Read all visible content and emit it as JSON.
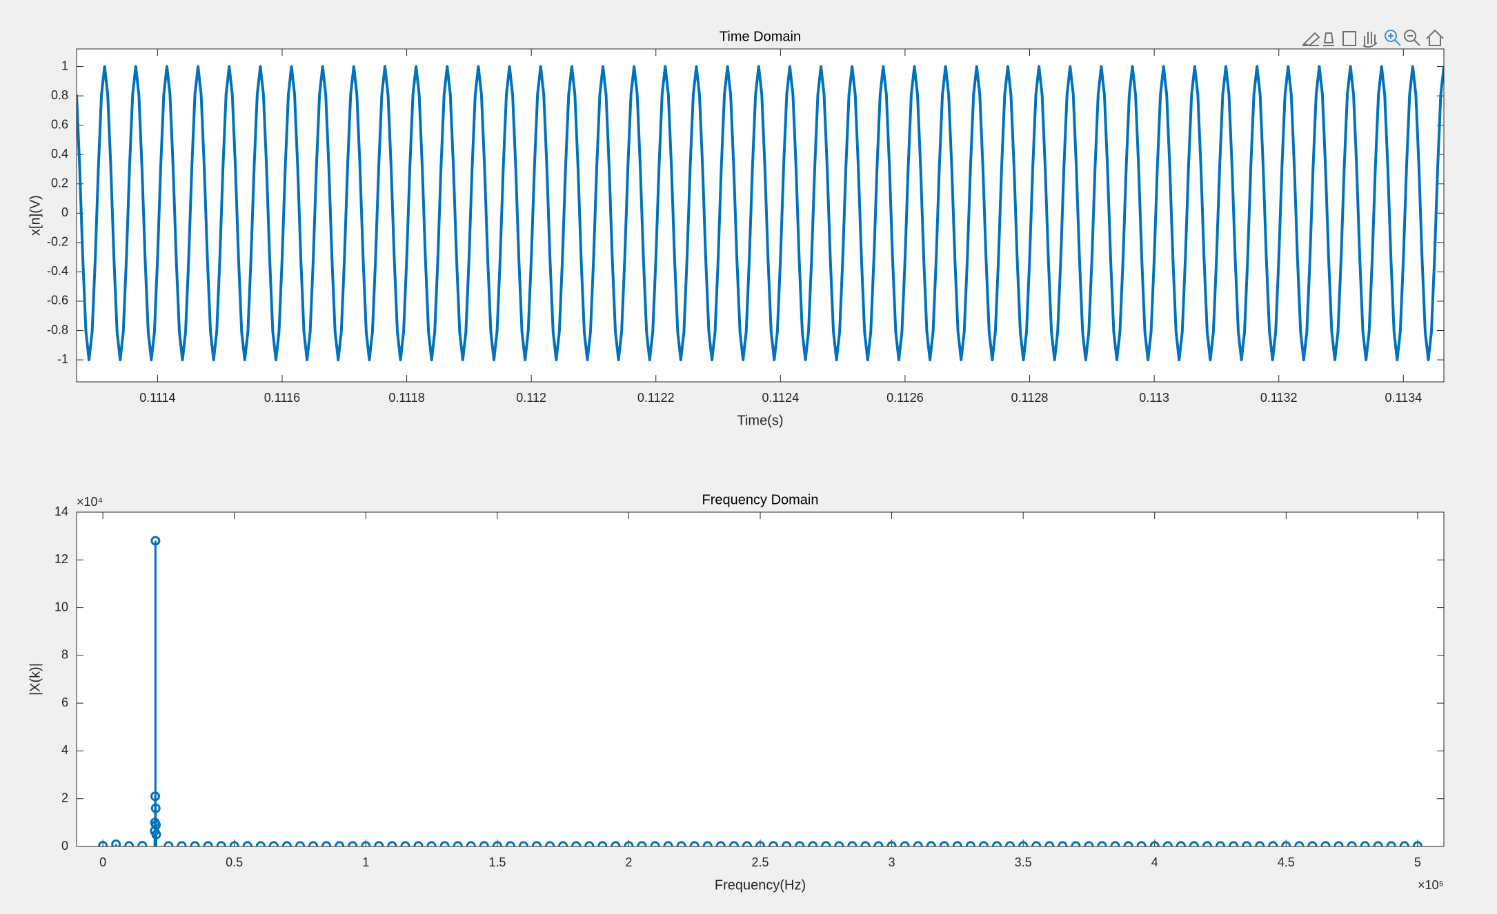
{
  "chart_data": [
    {
      "type": "line",
      "title": "Time Domain",
      "x_label": "Time(s)",
      "y_label": "x[n](V)",
      "color": "#0072bd",
      "xlim": [
        0.11127,
        0.113465
      ],
      "xticks": [
        0.1114,
        0.1116,
        0.1118,
        0.112,
        0.1122,
        0.1124,
        0.1126,
        0.1128,
        0.113,
        0.1132,
        0.1134
      ],
      "ylim": [
        -1.15,
        1.12
      ],
      "yticks": [
        -1,
        -0.8,
        -0.6,
        -0.4,
        -0.2,
        0,
        0.2,
        0.4,
        0.6,
        0.8,
        1
      ],
      "x": [
        0.11127,
        0.111275,
        0.11128,
        0.111285,
        0.11129,
        0.111295,
        0.1113,
        0.111305,
        0.11131,
        0.111315,
        0.11132,
        0.111325,
        0.11133,
        0.111335,
        0.11134,
        0.111345,
        0.11135,
        0.111355,
        0.11136,
        0.111365,
        0.11137,
        0.111375,
        0.11138,
        0.111385,
        0.11139,
        0.111395,
        0.1114,
        0.111405,
        0.11141,
        0.111415,
        0.11142,
        0.111425,
        0.11143,
        0.111435,
        0.11144,
        0.111445,
        0.11145,
        0.111455,
        0.11146,
        0.111465,
        0.11147,
        0.111475,
        0.11148,
        0.111485,
        0.11149,
        0.111495,
        0.1115,
        0.111505,
        0.11151,
        0.111515,
        0.11152,
        0.111525,
        0.11153,
        0.111535,
        0.11154,
        0.111545,
        0.11155,
        0.111555,
        0.11156,
        0.111565,
        0.11157,
        0.111575,
        0.11158,
        0.111585,
        0.11159,
        0.111595,
        0.1116,
        0.111605,
        0.11161,
        0.111615,
        0.11162,
        0.111625,
        0.11163,
        0.111635,
        0.11164,
        0.111645,
        0.11165,
        0.111655,
        0.11166,
        0.111665,
        0.11167,
        0.111675,
        0.11168,
        0.111685,
        0.11169,
        0.111695,
        0.1117,
        0.111705,
        0.11171,
        0.111715,
        0.11172,
        0.111725,
        0.11173,
        0.111735,
        0.11174,
        0.111745,
        0.11175,
        0.111755,
        0.11176,
        0.111765,
        0.11177,
        0.111775,
        0.11178,
        0.111785,
        0.11179,
        0.111795,
        0.1118,
        0.111805,
        0.11181,
        0.111815,
        0.11182,
        0.111825,
        0.11183,
        0.111835,
        0.11184,
        0.111845,
        0.11185,
        0.111855,
        0.11186,
        0.111865,
        0.11187,
        0.111875,
        0.11188,
        0.111885,
        0.11189,
        0.111895,
        0.1119,
        0.111905,
        0.11191,
        0.111915,
        0.11192,
        0.111925,
        0.11193,
        0.111935,
        0.11194,
        0.111945,
        0.11195,
        0.111955,
        0.11196,
        0.111965,
        0.11197,
        0.111975,
        0.11198,
        0.111985,
        0.11199,
        0.111995,
        0.112,
        0.112005,
        0.11201,
        0.112015,
        0.11202,
        0.112025,
        0.11203,
        0.112035,
        0.11204,
        0.112045,
        0.11205,
        0.112055,
        0.11206,
        0.112065,
        0.11207,
        0.112075,
        0.11208,
        0.112085,
        0.11209,
        0.112095,
        0.1121,
        0.112105,
        0.11211,
        0.112115,
        0.11212,
        0.112125,
        0.11213,
        0.112135,
        0.11214,
        0.112145,
        0.11215,
        0.112155,
        0.11216,
        0.112165,
        0.11217,
        0.112175,
        0.11218,
        0.112185,
        0.11219,
        0.112195,
        0.1122,
        0.112205,
        0.11221,
        0.112215,
        0.11222,
        0.112225,
        0.11223,
        0.112235,
        0.11224,
        0.112245,
        0.11225,
        0.112255,
        0.11226,
        0.112265,
        0.11227,
        0.112275,
        0.11228,
        0.112285,
        0.11229,
        0.112295,
        0.1123,
        0.112305,
        0.11231,
        0.112315,
        0.11232,
        0.112325,
        0.11233,
        0.112335,
        0.11234,
        0.112345,
        0.11235,
        0.112355,
        0.11236,
        0.112365,
        0.11237,
        0.112375,
        0.11238,
        0.112385,
        0.11239,
        0.112395,
        0.1124,
        0.112405,
        0.11241,
        0.112415,
        0.11242,
        0.112425,
        0.11243,
        0.112435,
        0.11244,
        0.112445,
        0.11245,
        0.112455,
        0.11246,
        0.112465,
        0.11247,
        0.112475,
        0.11248,
        0.112485,
        0.11249,
        0.112495,
        0.1125,
        0.112505,
        0.11251,
        0.112515,
        0.11252,
        0.112525,
        0.11253,
        0.112535,
        0.11254,
        0.112545,
        0.11255,
        0.112555,
        0.11256,
        0.112565,
        0.11257,
        0.112575,
        0.11258,
        0.112585,
        0.11259,
        0.112595,
        0.1126,
        0.112605,
        0.11261,
        0.112615,
        0.11262,
        0.112625,
        0.11263,
        0.112635,
        0.11264,
        0.112645,
        0.11265,
        0.112655,
        0.11266,
        0.112665,
        0.11267,
        0.112675,
        0.11268,
        0.112685,
        0.11269,
        0.112695,
        0.1127,
        0.112705,
        0.11271,
        0.112715,
        0.11272,
        0.112725,
        0.11273,
        0.112735,
        0.11274,
        0.112745,
        0.11275,
        0.112755,
        0.11276,
        0.112765,
        0.11277,
        0.112775,
        0.11278,
        0.112785,
        0.11279,
        0.112795,
        0.1128,
        0.112805,
        0.11281,
        0.112815,
        0.11282,
        0.112825,
        0.11283,
        0.112835,
        0.11284,
        0.112845,
        0.11285,
        0.112855,
        0.11286,
        0.112865,
        0.11287,
        0.112875,
        0.11288,
        0.112885,
        0.11289,
        0.112895,
        0.1129,
        0.112905,
        0.11291,
        0.112915,
        0.11292,
        0.112925,
        0.11293,
        0.112935,
        0.11294,
        0.112945,
        0.11295,
        0.112955,
        0.11296,
        0.112965,
        0.11297,
        0.112975,
        0.11298,
        0.112985,
        0.11299,
        0.112995,
        0.113,
        0.113005,
        0.11301,
        0.113015,
        0.11302,
        0.113025,
        0.11303,
        0.113035,
        0.11304,
        0.113045,
        0.11305,
        0.113055,
        0.11306,
        0.113065,
        0.11307,
        0.113075,
        0.11308,
        0.113085,
        0.11309,
        0.113095,
        0.1131,
        0.113105,
        0.11311,
        0.113115,
        0.11312,
        0.113125,
        0.11313,
        0.113135,
        0.11314,
        0.113145,
        0.11315,
        0.113155,
        0.11316,
        0.113165,
        0.11317,
        0.113175,
        0.11318,
        0.113185,
        0.11319,
        0.113195,
        0.1132,
        0.113205,
        0.11321,
        0.113215,
        0.11322,
        0.113225,
        0.11323,
        0.113235,
        0.11324,
        0.113245,
        0.11325,
        0.113255,
        0.11326,
        0.113265,
        0.11327,
        0.113275,
        0.11328,
        0.113285,
        0.11329,
        0.113295,
        0.1133,
        0.113305,
        0.11331,
        0.113315,
        0.11332,
        0.113325,
        0.11333,
        0.113335,
        0.11334,
        0.113345,
        0.11335,
        0.113355,
        0.11336,
        0.113365,
        0.11337,
        0.113375,
        0.11338,
        0.113385,
        0.11339,
        0.113395,
        0.1134,
        0.113405,
        0.11341,
        0.113415,
        0.11342,
        0.113425,
        0.11343,
        0.113435,
        0.11344,
        0.113445,
        0.11345,
        0.113455,
        0.11346,
        0.113465
      ],
      "values": [
        0.809,
        0.309,
        -0.309,
        -0.809,
        -1,
        -0.809,
        -0.309,
        0.309,
        0.809,
        1,
        0.809,
        0.309,
        -0.309,
        -0.809,
        -1,
        -0.809,
        -0.309,
        0.309,
        0.809,
        1,
        0.809,
        0.309,
        -0.309,
        -0.809,
        -1,
        -0.809,
        -0.309,
        0.309,
        0.809,
        1,
        0.809,
        0.309,
        -0.309,
        -0.809,
        -1,
        -0.809,
        -0.309,
        0.309,
        0.809,
        1,
        0.809,
        0.309,
        -0.309,
        -0.809,
        -1,
        -0.809,
        -0.309,
        0.309,
        0.809,
        1,
        0.809,
        0.309,
        -0.309,
        -0.809,
        -1,
        -0.809,
        -0.309,
        0.309,
        0.809,
        1,
        0.809,
        0.309,
        -0.309,
        -0.809,
        -1,
        -0.809,
        -0.309,
        0.309,
        0.809,
        1,
        0.809,
        0.309,
        -0.309,
        -0.809,
        -1,
        -0.809,
        -0.309,
        0.309,
        0.809,
        1,
        0.809,
        0.309,
        -0.309,
        -0.809,
        -1,
        -0.809,
        -0.309,
        0.309,
        0.809,
        1,
        0.809,
        0.309,
        -0.309,
        -0.809,
        -1,
        -0.809,
        -0.309,
        0.309,
        0.809,
        1,
        0.809,
        0.309,
        -0.309,
        -0.809,
        -1,
        -0.809,
        -0.309,
        0.309,
        0.809,
        1,
        0.809,
        0.309,
        -0.309,
        -0.809,
        -1,
        -0.809,
        -0.309,
        0.309,
        0.809,
        1,
        0.809,
        0.309,
        -0.309,
        -0.809,
        -1,
        -0.809,
        -0.309,
        0.309,
        0.809,
        1,
        0.809,
        0.309,
        -0.309,
        -0.809,
        -1,
        -0.809,
        -0.309,
        0.309,
        0.809,
        1,
        0.809,
        0.309,
        -0.309,
        -0.809,
        -1,
        -0.809,
        -0.309,
        0.309,
        0.809,
        1,
        0.809,
        0.309,
        -0.309,
        -0.809,
        -1,
        -0.809,
        -0.309,
        0.309,
        0.809,
        1,
        0.809,
        0.309,
        -0.309,
        -0.809,
        -1,
        -0.809,
        -0.309,
        0.309,
        0.809,
        1,
        0.809,
        0.309,
        -0.309,
        -0.809,
        -1,
        -0.809,
        -0.309,
        0.309,
        0.809,
        1,
        0.809,
        0.309,
        -0.309,
        -0.809,
        -1,
        -0.809,
        -0.309,
        0.309,
        0.809,
        1,
        0.809,
        0.309,
        -0.309,
        -0.809,
        -1,
        -0.809,
        -0.309,
        0.309,
        0.809,
        1,
        0.809,
        0.309,
        -0.309,
        -0.809,
        -1,
        -0.809,
        -0.309,
        0.309,
        0.809,
        1,
        0.809,
        0.309,
        -0.309,
        -0.809,
        -1,
        -0.809,
        -0.309,
        0.309,
        0.809,
        1,
        0.809,
        0.309,
        -0.309,
        -0.809,
        -1,
        -0.809,
        -0.309,
        0.309,
        0.809,
        1,
        0.809,
        0.309,
        -0.309,
        -0.809,
        -1,
        -0.809,
        -0.309,
        0.309,
        0.809,
        1,
        0.809,
        0.309,
        -0.309,
        -0.809,
        -1,
        -0.809,
        -0.309,
        0.309,
        0.809,
        1,
        0.809,
        0.309,
        -0.309,
        -0.809,
        -1,
        -0.809,
        -0.309,
        0.309,
        0.809,
        1,
        0.809,
        0.309,
        -0.309,
        -0.809,
        -1,
        -0.809,
        -0.309,
        0.309,
        0.809,
        1,
        0.809,
        0.309,
        -0.309,
        -0.809,
        -1,
        -0.809,
        -0.309,
        0.309,
        0.809,
        1,
        0.809,
        0.309,
        -0.309,
        -0.809,
        -1,
        -0.809,
        -0.309,
        0.309,
        0.809,
        1,
        0.809,
        0.309,
        -0.309,
        -0.809,
        -1,
        -0.809,
        -0.309,
        0.309,
        0.809,
        1,
        0.809,
        0.309,
        -0.309,
        -0.809,
        -1,
        -0.809,
        -0.309,
        0.309,
        0.809,
        1,
        0.809,
        0.309,
        -0.309,
        -0.809,
        -1,
        -0.809,
        -0.309,
        0.309,
        0.809,
        1,
        0.809,
        0.309,
        -0.309,
        -0.809,
        -1,
        -0.809,
        -0.309,
        0.309,
        0.809,
        1,
        0.809,
        0.309,
        -0.309,
        -0.809,
        -1,
        -0.809,
        -0.309,
        0.309,
        0.809,
        1,
        0.809,
        0.309,
        -0.309,
        -0.809,
        -1,
        -0.809,
        -0.309,
        0.309,
        0.809,
        1,
        0.809,
        0.309,
        -0.309,
        -0.809,
        -1,
        -0.809,
        -0.309,
        0.309,
        0.809,
        1,
        0.809,
        0.309,
        -0.309,
        -0.809,
        -1,
        -0.809,
        -0.309,
        0.309,
        0.809,
        1,
        0.809,
        0.309,
        -0.309,
        -0.809,
        -1,
        -0.809,
        -0.309,
        0.309,
        0.809,
        1,
        0.809,
        0.309,
        -0.309,
        -0.809,
        -1,
        -0.809,
        -0.309,
        0.309,
        0.809,
        1,
        0.809,
        0.309,
        -0.309,
        -0.809,
        -1,
        -0.809,
        -0.309,
        0.309,
        0.809,
        1,
        0.809,
        0.309,
        -0.309,
        -0.809,
        -1,
        -0.809,
        -0.309,
        0.309,
        0.809,
        1,
        0.809,
        0.309,
        -0.309,
        -0.809,
        -1,
        -0.809,
        -0.309,
        0.309,
        0.809,
        1,
        0.809,
        0.309,
        -0.309,
        -0.809,
        -1,
        -0.809,
        -0.309,
        0.309,
        0.809,
        1,
        0.809,
        0.309,
        -0.309,
        -0.809,
        -1,
        -0.809,
        -0.309,
        0.309,
        0.809,
        1
      ]
    },
    {
      "type": "stem",
      "title": "Frequency Domain",
      "x_label": "Frequency(Hz)",
      "y_label": "|X(k)|",
      "color": "#0072bd",
      "x_exponent": "×10⁵",
      "y_exponent": "×10⁴",
      "xlim": [
        -10000,
        510000
      ],
      "xticks": [
        0,
        {
          "value": 50000,
          "label": "0.5"
        },
        {
          "value": 100000,
          "label": "1"
        },
        {
          "value": 150000,
          "label": "1.5"
        },
        {
          "value": 200000,
          "label": "2"
        },
        {
          "value": 250000,
          "label": "2.5"
        },
        {
          "value": 300000,
          "label": "3"
        },
        {
          "value": 350000,
          "label": "3.5"
        },
        {
          "value": 400000,
          "label": "4"
        },
        {
          "value": 450000,
          "label": "4.5"
        },
        {
          "value": 500000,
          "label": "5"
        }
      ],
      "ylim": [
        0,
        140000
      ],
      "yticks": [
        0,
        {
          "value": 20000,
          "label": "2"
        },
        {
          "value": 40000,
          "label": "4"
        },
        {
          "value": 60000,
          "label": "6"
        },
        {
          "value": 80000,
          "label": "8"
        },
        {
          "value": 100000,
          "label": "10"
        },
        {
          "value": 120000,
          "label": "12"
        },
        {
          "value": 140000,
          "label": "14"
        }
      ],
      "x": [
        0,
        5000,
        10000,
        15000,
        19700,
        19800,
        19900,
        20000,
        20100,
        20200,
        20300,
        25000,
        30000,
        35000,
        40000,
        45000,
        50000,
        55000,
        60000,
        65000,
        70000,
        75000,
        80000,
        85000,
        90000,
        95000,
        100000,
        105000,
        110000,
        115000,
        120000,
        125000,
        130000,
        135000,
        140000,
        145000,
        150000,
        155000,
        160000,
        165000,
        170000,
        175000,
        180000,
        185000,
        190000,
        195000,
        200000,
        205000,
        210000,
        215000,
        220000,
        225000,
        230000,
        235000,
        240000,
        245000,
        250000,
        255000,
        260000,
        265000,
        270000,
        275000,
        280000,
        285000,
        290000,
        295000,
        300000,
        305000,
        310000,
        315000,
        320000,
        325000,
        330000,
        335000,
        340000,
        345000,
        350000,
        355000,
        360000,
        365000,
        370000,
        375000,
        380000,
        385000,
        390000,
        395000,
        400000,
        405000,
        410000,
        415000,
        420000,
        425000,
        430000,
        435000,
        440000,
        445000,
        450000,
        455000,
        460000,
        465000,
        470000,
        475000,
        480000,
        485000,
        490000,
        495000,
        500000
      ],
      "values": [
        300,
        900,
        200,
        300,
        6500,
        10000,
        21000,
        128000,
        16000,
        9000,
        5000,
        200,
        200,
        200,
        200,
        200,
        200,
        200,
        200,
        200,
        200,
        200,
        200,
        200,
        200,
        200,
        200,
        200,
        200,
        200,
        200,
        200,
        200,
        200,
        200,
        200,
        200,
        200,
        200,
        200,
        200,
        200,
        200,
        200,
        200,
        200,
        200,
        200,
        200,
        200,
        200,
        200,
        200,
        200,
        200,
        200,
        200,
        200,
        200,
        200,
        200,
        200,
        200,
        200,
        200,
        200,
        200,
        200,
        200,
        200,
        200,
        200,
        200,
        200,
        200,
        200,
        200,
        200,
        200,
        200,
        200,
        200,
        200,
        200,
        200,
        200,
        200,
        200,
        200,
        200,
        200,
        200,
        200,
        200,
        200,
        200,
        200,
        200,
        200,
        200,
        200,
        200,
        200,
        200,
        200,
        200,
        200
      ]
    }
  ]
}
